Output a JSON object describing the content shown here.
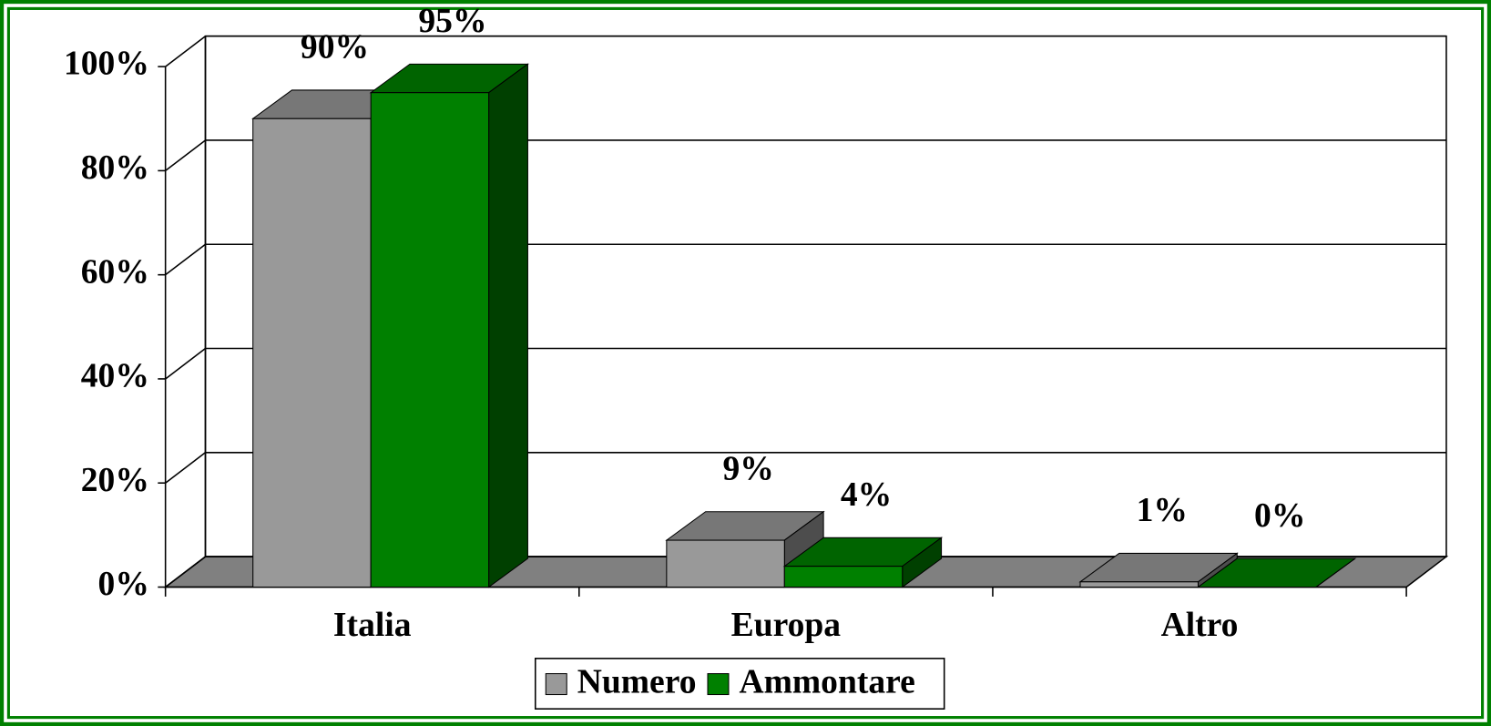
{
  "chart_data": {
    "type": "bar3d",
    "categories": [
      "Italia",
      "Europa",
      "Altro"
    ],
    "series": [
      {
        "name": "Numero",
        "color": "#999999",
        "values": [
          90,
          9,
          1
        ],
        "value_labels": [
          "90%",
          "9%",
          "1%"
        ]
      },
      {
        "name": "Ammontare",
        "color": "#008000",
        "values": [
          95,
          4,
          0
        ],
        "value_labels": [
          "95%",
          "4%",
          "0%"
        ]
      }
    ],
    "ylim": [
      0,
      100
    ],
    "yticks": [
      {
        "value": 0,
        "label": "0%"
      },
      {
        "value": 20,
        "label": "20%"
      },
      {
        "value": 40,
        "label": "40%"
      },
      {
        "value": 60,
        "label": "60%"
      },
      {
        "value": 80,
        "label": "80%"
      },
      {
        "value": 100,
        "label": "100%"
      }
    ],
    "grid": true,
    "legend": "bottom"
  }
}
